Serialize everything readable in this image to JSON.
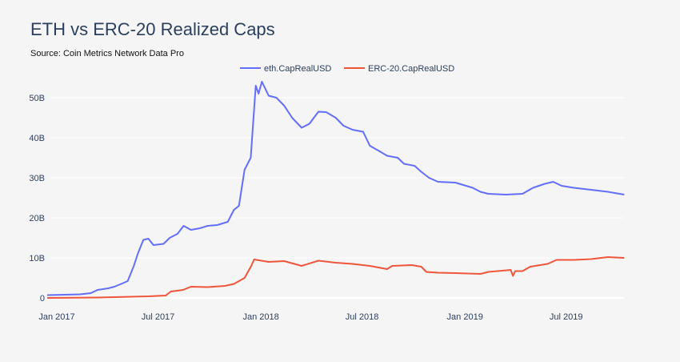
{
  "chart_data": {
    "type": "line",
    "title": "ETH vs ERC-20 Realized Caps",
    "subtitle": "Source: Coin Metrics Network Data Pro",
    "xlabel": "",
    "ylabel": "",
    "xlim": [
      "2017-01-01",
      "2019-10-31"
    ],
    "ylim": [
      0,
      55
    ],
    "x_ticks": [
      {
        "date": "2017-01-01",
        "label": "Jan 2017"
      },
      {
        "date": "2017-07-01",
        "label": "Jul 2017"
      },
      {
        "date": "2018-01-01",
        "label": "Jan 2018"
      },
      {
        "date": "2018-07-01",
        "label": "Jul 2018"
      },
      {
        "date": "2019-01-01",
        "label": "Jan 2019"
      },
      {
        "date": "2019-07-01",
        "label": "Jul 2019"
      }
    ],
    "y_ticks": [
      {
        "value": 0,
        "label": "0"
      },
      {
        "value": 10,
        "label": "10B"
      },
      {
        "value": 20,
        "label": "20B"
      },
      {
        "value": 30,
        "label": "30B"
      },
      {
        "value": 40,
        "label": "40B"
      },
      {
        "value": 50,
        "label": "50B"
      }
    ],
    "y_unit": "billion USD",
    "grid": "horizontal",
    "legend_placement": "top-center",
    "series": [
      {
        "name": "eth.CapRealUSD",
        "color": "#636efa",
        "points": [
          [
            "2017-01-01",
            0.7
          ],
          [
            "2017-02-01",
            0.8
          ],
          [
            "2017-03-01",
            0.9
          ],
          [
            "2017-03-20",
            1.2
          ],
          [
            "2017-04-01",
            2.0
          ],
          [
            "2017-04-20",
            2.4
          ],
          [
            "2017-05-01",
            2.8
          ],
          [
            "2017-05-15",
            3.6
          ],
          [
            "2017-05-25",
            4.2
          ],
          [
            "2017-06-05",
            8
          ],
          [
            "2017-06-12",
            11
          ],
          [
            "2017-06-22",
            14.5
          ],
          [
            "2017-07-01",
            14.8
          ],
          [
            "2017-07-10",
            13.2
          ],
          [
            "2017-07-28",
            13.5
          ],
          [
            "2017-08-08",
            15
          ],
          [
            "2017-08-22",
            16
          ],
          [
            "2017-09-02",
            18
          ],
          [
            "2017-09-15",
            17
          ],
          [
            "2017-10-01",
            17.4
          ],
          [
            "2017-10-15",
            18
          ],
          [
            "2017-11-01",
            18.2
          ],
          [
            "2017-11-20",
            19
          ],
          [
            "2017-12-01",
            22
          ],
          [
            "2017-12-10",
            23
          ],
          [
            "2017-12-20",
            32
          ],
          [
            "2017-12-31",
            35
          ],
          [
            "2018-01-09",
            53
          ],
          [
            "2018-01-14",
            51
          ],
          [
            "2018-01-20",
            54
          ],
          [
            "2018-02-01",
            50.5
          ],
          [
            "2018-02-15",
            50
          ],
          [
            "2018-03-01",
            48
          ],
          [
            "2018-03-15",
            45
          ],
          [
            "2018-04-01",
            42.5
          ],
          [
            "2018-04-15",
            43.5
          ],
          [
            "2018-05-01",
            46.5
          ],
          [
            "2018-05-15",
            46.4
          ],
          [
            "2018-06-01",
            45
          ],
          [
            "2018-06-15",
            43
          ],
          [
            "2018-07-01",
            42
          ],
          [
            "2018-07-20",
            41.5
          ],
          [
            "2018-08-01",
            38
          ],
          [
            "2018-08-20",
            36.5
          ],
          [
            "2018-09-01",
            35.5
          ],
          [
            "2018-09-20",
            35
          ],
          [
            "2018-10-01",
            33.5
          ],
          [
            "2018-10-20",
            33
          ],
          [
            "2018-11-01",
            31.5
          ],
          [
            "2018-11-15",
            30
          ],
          [
            "2018-12-01",
            29
          ],
          [
            "2019-01-01",
            28.8
          ],
          [
            "2019-02-01",
            27.5
          ],
          [
            "2019-02-15",
            26.5
          ],
          [
            "2019-03-01",
            26
          ],
          [
            "2019-04-01",
            25.8
          ],
          [
            "2019-05-01",
            26
          ],
          [
            "2019-05-20",
            27.5
          ],
          [
            "2019-06-10",
            28.5
          ],
          [
            "2019-06-25",
            29
          ],
          [
            "2019-07-10",
            28
          ],
          [
            "2019-08-01",
            27.5
          ],
          [
            "2019-09-01",
            27
          ],
          [
            "2019-10-01",
            26.5
          ],
          [
            "2019-10-30",
            25.8
          ]
        ]
      },
      {
        "name": "ERC-20.CapRealUSD",
        "color": "#EF553B",
        "points": [
          [
            "2017-01-01",
            0.0
          ],
          [
            "2017-04-01",
            0.1
          ],
          [
            "2017-07-01",
            0.4
          ],
          [
            "2017-08-01",
            0.6
          ],
          [
            "2017-08-10",
            1.6
          ],
          [
            "2017-09-01",
            2.0
          ],
          [
            "2017-09-15",
            2.8
          ],
          [
            "2017-10-15",
            2.7
          ],
          [
            "2017-11-15",
            3.0
          ],
          [
            "2017-12-01",
            3.5
          ],
          [
            "2017-12-20",
            5
          ],
          [
            "2018-01-01",
            8
          ],
          [
            "2018-01-06",
            9.6
          ],
          [
            "2018-02-01",
            9.0
          ],
          [
            "2018-03-01",
            9.2
          ],
          [
            "2018-04-01",
            8.0
          ],
          [
            "2018-05-01",
            9.3
          ],
          [
            "2018-06-01",
            8.8
          ],
          [
            "2018-07-01",
            8.5
          ],
          [
            "2018-08-01",
            8.0
          ],
          [
            "2018-09-01",
            7.2
          ],
          [
            "2018-09-10",
            8.0
          ],
          [
            "2018-10-15",
            8.2
          ],
          [
            "2018-11-01",
            7.8
          ],
          [
            "2018-11-10",
            6.5
          ],
          [
            "2018-12-01",
            6.3
          ],
          [
            "2019-01-01",
            6.2
          ],
          [
            "2019-02-15",
            6.0
          ],
          [
            "2019-03-01",
            6.5
          ],
          [
            "2019-04-10",
            7.0
          ],
          [
            "2019-04-14",
            5.5
          ],
          [
            "2019-04-18",
            6.7
          ],
          [
            "2019-05-01",
            6.7
          ],
          [
            "2019-05-15",
            7.8
          ],
          [
            "2019-06-15",
            8.5
          ],
          [
            "2019-07-01",
            9.5
          ],
          [
            "2019-08-01",
            9.5
          ],
          [
            "2019-09-01",
            9.7
          ],
          [
            "2019-10-01",
            10.2
          ],
          [
            "2019-10-30",
            10.0
          ]
        ]
      }
    ]
  }
}
